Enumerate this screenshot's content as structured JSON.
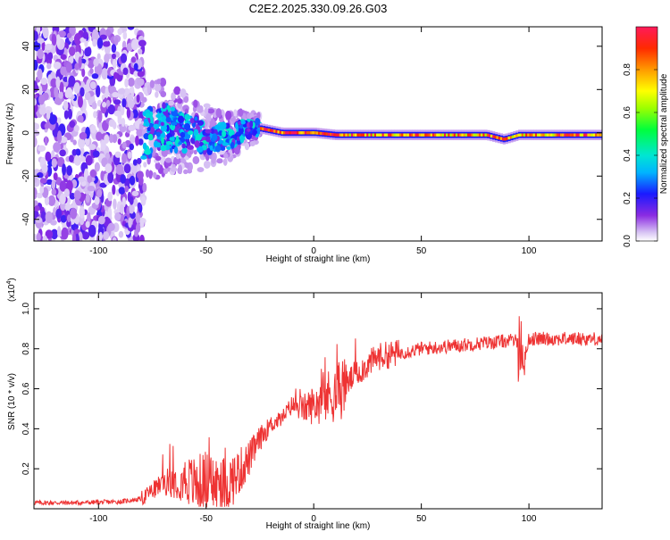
{
  "chart_data": [
    {
      "type": "heatmap",
      "title": "C2E2.2025.330.09.26.G03",
      "xlabel": "Height of straight line (km)",
      "ylabel": "Frequency (Hz)",
      "xlim": [
        -130,
        134
      ],
      "ylim": [
        -50,
        49
      ],
      "xticks": [
        -100,
        -50,
        0,
        50,
        100
      ],
      "yticks": [
        -40,
        -20,
        0,
        20,
        40
      ],
      "colorbar": {
        "label": "Normalized spectral amplitude",
        "range": [
          0.0,
          1.0
        ],
        "ticks": [
          "0.0",
          "0.2",
          "0.4",
          "0.6",
          "0.8"
        ],
        "tick_values": [
          0.0,
          0.2,
          0.4,
          0.6,
          0.8
        ]
      },
      "features": {
        "noise_region_km": [
          -130,
          -79
        ],
        "scattered_region_km": [
          -79,
          -25
        ],
        "stable_track_km": [
          -25,
          134
        ],
        "track_frequency_hz": [
          [
            -90,
            -10
          ],
          [
            -80,
            -2
          ],
          [
            -70,
            3
          ],
          [
            -60,
            0
          ],
          [
            -50,
            -2
          ],
          [
            -40,
            -2
          ],
          [
            -30,
            2
          ],
          [
            -25,
            2
          ],
          [
            -15,
            0
          ],
          [
            0,
            0
          ],
          [
            10,
            -1
          ],
          [
            30,
            -1
          ],
          [
            60,
            -1
          ],
          [
            80,
            -1
          ],
          [
            88,
            -3
          ],
          [
            95,
            -1
          ],
          [
            134,
            -1
          ]
        ]
      }
    },
    {
      "type": "line",
      "xlabel": "Height of straight line (km)",
      "ylabel": "SNR (10 * v/v)",
      "scale_label": "(x10",
      "scale_exp": "4",
      "scale_close": ")",
      "xlim": [
        -130,
        134
      ],
      "ylim": [
        0,
        1.08
      ],
      "xticks": [
        -100,
        -50,
        0,
        50,
        100
      ],
      "yticks": [
        0.2,
        0.4,
        0.6,
        0.8,
        1
      ],
      "ytick_labels": [
        "0.2",
        "0.4",
        "0.6",
        "0.8",
        "1.0"
      ],
      "color": "#ee3333",
      "series": [
        {
          "name": "SNR",
          "x": [
            -130,
            -110,
            -90,
            -80,
            -75,
            -70,
            -60,
            -55,
            -50,
            -45,
            -40,
            -35,
            -30,
            -25,
            -20,
            -15,
            -10,
            -5,
            0,
            5,
            10,
            15,
            20,
            25,
            30,
            40,
            50,
            60,
            70,
            80,
            90,
            95,
            97,
            100,
            110,
            120,
            134
          ],
          "y": [
            0.03,
            0.03,
            0.035,
            0.05,
            0.09,
            0.13,
            0.15,
            0.12,
            0.14,
            0.11,
            0.12,
            0.18,
            0.25,
            0.35,
            0.42,
            0.45,
            0.52,
            0.5,
            0.52,
            0.55,
            0.58,
            0.62,
            0.68,
            0.72,
            0.76,
            0.78,
            0.8,
            0.81,
            0.82,
            0.83,
            0.84,
            0.84,
            0.7,
            0.85,
            0.85,
            0.85,
            0.85
          ]
        }
      ]
    }
  ]
}
